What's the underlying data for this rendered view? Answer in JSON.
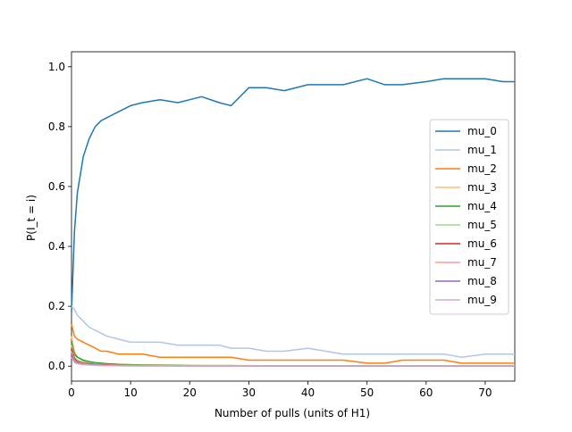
{
  "chart_data": {
    "type": "line",
    "title": "",
    "xlabel": "Number of pulls (units of H1)",
    "ylabel": "P(I_t = i)",
    "xlim": [
      0,
      75
    ],
    "ylim": [
      -0.05,
      1.05
    ],
    "xticks": [
      0,
      10,
      20,
      30,
      40,
      50,
      60,
      70
    ],
    "yticks": [
      0.0,
      0.2,
      0.4,
      0.6,
      0.8,
      1.0
    ],
    "xtick_labels": [
      "0",
      "10",
      "20",
      "30",
      "40",
      "50",
      "60",
      "70"
    ],
    "ytick_labels": [
      "0.0",
      "0.2",
      "0.4",
      "0.6",
      "0.8",
      "1.0"
    ],
    "grid": false,
    "legend_position": "center-right",
    "x": [
      0,
      0.5,
      1,
      2,
      3,
      4,
      5,
      6,
      8,
      10,
      12,
      15,
      18,
      20,
      22,
      25,
      27,
      30,
      33,
      36,
      40,
      43,
      46,
      50,
      53,
      56,
      60,
      63,
      66,
      70,
      73,
      75
    ],
    "series": [
      {
        "name": "mu_0",
        "color": "#1f77b4",
        "values": [
          0.18,
          0.45,
          0.58,
          0.7,
          0.76,
          0.8,
          0.82,
          0.83,
          0.85,
          0.87,
          0.88,
          0.89,
          0.88,
          0.89,
          0.9,
          0.88,
          0.87,
          0.93,
          0.93,
          0.92,
          0.94,
          0.94,
          0.94,
          0.96,
          0.94,
          0.94,
          0.95,
          0.96,
          0.96,
          0.96,
          0.95,
          0.95
        ]
      },
      {
        "name": "mu_1",
        "color": "#aec7e8",
        "values": [
          0.2,
          0.19,
          0.17,
          0.15,
          0.13,
          0.12,
          0.11,
          0.1,
          0.09,
          0.08,
          0.08,
          0.08,
          0.07,
          0.07,
          0.07,
          0.07,
          0.06,
          0.06,
          0.05,
          0.05,
          0.06,
          0.05,
          0.04,
          0.04,
          0.04,
          0.04,
          0.04,
          0.04,
          0.03,
          0.04,
          0.04,
          0.04
        ]
      },
      {
        "name": "mu_2",
        "color": "#ff7f0e",
        "values": [
          0.14,
          0.1,
          0.09,
          0.08,
          0.07,
          0.06,
          0.05,
          0.05,
          0.04,
          0.04,
          0.04,
          0.03,
          0.03,
          0.03,
          0.03,
          0.03,
          0.03,
          0.02,
          0.02,
          0.02,
          0.02,
          0.02,
          0.02,
          0.01,
          0.01,
          0.02,
          0.02,
          0.02,
          0.01,
          0.01,
          0.01,
          0.01
        ]
      },
      {
        "name": "mu_3",
        "color": "#ffbb78",
        "values": [
          0.1,
          0.05,
          0.03,
          0.02,
          0.015,
          0.01,
          0.01,
          0.008,
          0.006,
          0.005,
          0.004,
          0.004,
          0.003,
          0.003,
          0.002,
          0.002,
          0.002,
          0.002,
          0.001,
          0.001,
          0.001,
          0.001,
          0.001,
          0.001,
          0.001,
          0.001,
          0.001,
          0.001,
          0.001,
          0.001,
          0.001,
          0.001
        ]
      },
      {
        "name": "mu_4",
        "color": "#2ca02c",
        "values": [
          0.08,
          0.04,
          0.03,
          0.02,
          0.015,
          0.012,
          0.01,
          0.008,
          0.006,
          0.005,
          0.004,
          0.003,
          0.003,
          0.002,
          0.002,
          0.002,
          0.002,
          0.001,
          0.001,
          0.001,
          0.001,
          0.001,
          0.001,
          0.001,
          0.001,
          0.001,
          0.001,
          0.001,
          0.001,
          0.001,
          0.001,
          0.001
        ]
      },
      {
        "name": "mu_5",
        "color": "#98df8a",
        "values": [
          0.07,
          0.03,
          0.02,
          0.015,
          0.01,
          0.008,
          0.006,
          0.005,
          0.004,
          0.003,
          0.003,
          0.002,
          0.002,
          0.002,
          0.001,
          0.001,
          0.001,
          0.001,
          0.001,
          0.001,
          0.001,
          0.001,
          0.001,
          0.001,
          0.001,
          0.001,
          0.001,
          0.001,
          0.001,
          0.001,
          0.001,
          0.001
        ]
      },
      {
        "name": "mu_6",
        "color": "#d62728",
        "values": [
          0.06,
          0.025,
          0.015,
          0.01,
          0.008,
          0.006,
          0.005,
          0.004,
          0.003,
          0.002,
          0.002,
          0.002,
          0.001,
          0.001,
          0.001,
          0.001,
          0.001,
          0.001,
          0.001,
          0.001,
          0.001,
          0.001,
          0.001,
          0.001,
          0.001,
          0.001,
          0.001,
          0.001,
          0.001,
          0.001,
          0.001,
          0.001
        ]
      },
      {
        "name": "mu_7",
        "color": "#ff9896",
        "values": [
          0.05,
          0.02,
          0.012,
          0.008,
          0.006,
          0.005,
          0.004,
          0.003,
          0.002,
          0.002,
          0.001,
          0.001,
          0.001,
          0.001,
          0.001,
          0.001,
          0.001,
          0.001,
          0.001,
          0.001,
          0.001,
          0.001,
          0.001,
          0.001,
          0.001,
          0.001,
          0.001,
          0.001,
          0.001,
          0.001,
          0.001,
          0.001
        ]
      },
      {
        "name": "mu_8",
        "color": "#9467bd",
        "values": [
          0.04,
          0.015,
          0.01,
          0.006,
          0.005,
          0.004,
          0.003,
          0.002,
          0.002,
          0.001,
          0.001,
          0.001,
          0.001,
          0.001,
          0.001,
          0.001,
          0.001,
          0.001,
          0.001,
          0.001,
          0.001,
          0.001,
          0.001,
          0.001,
          0.001,
          0.001,
          0.001,
          0.001,
          0.001,
          0.001,
          0.001,
          0.001
        ]
      },
      {
        "name": "mu_9",
        "color": "#c5b0d5",
        "values": [
          0.03,
          0.012,
          0.008,
          0.005,
          0.004,
          0.003,
          0.002,
          0.002,
          0.001,
          0.001,
          0.001,
          0.001,
          0.001,
          0.001,
          0.001,
          0.001,
          0.001,
          0.001,
          0.001,
          0.001,
          0.001,
          0.001,
          0.001,
          0.001,
          0.001,
          0.001,
          0.001,
          0.001,
          0.001,
          0.001,
          0.001,
          0.001
        ]
      }
    ]
  }
}
